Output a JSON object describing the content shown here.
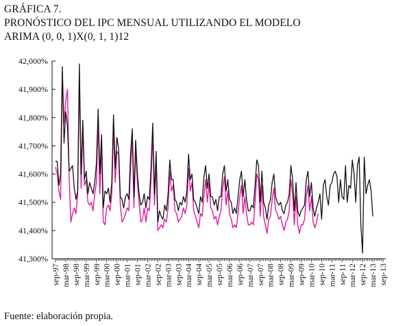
{
  "title": {
    "line1": "GRÁFICA 7.",
    "line2": "PRONÓSTICO DEL IPC MENSUAL UTILIZANDO EL MODELO",
    "line3": "ARIMA (0, 0, 1)X(0, 1, 1)12"
  },
  "source": "Fuente: elaboración propia.",
  "colors": {
    "observed": "#111111",
    "fitted": "#e0199a",
    "axis": "#111111"
  },
  "chart_data": {
    "type": "line",
    "ylim": [
      41.3,
      42.0
    ],
    "y_ticks": [
      "42,000%",
      "41,900%",
      "41,800%",
      "41,700%",
      "41,600%",
      "41,500%",
      "41,400%",
      "41,300%"
    ],
    "y_tick_values": [
      42.0,
      41.9,
      41.8,
      41.7,
      41.6,
      41.5,
      41.4,
      41.3
    ],
    "x_tick_labels": [
      "sep-97",
      "mar-98",
      "sep-98",
      "mar-99",
      "sep-99",
      "mar-00",
      "sep-00",
      "mar-01",
      "sep-01",
      "mar-02",
      "sep-02",
      "mar-03",
      "sep-03",
      "mar-04",
      "sep-04",
      "mar-05",
      "sep-05",
      "mar-06",
      "sep-06",
      "mar-07",
      "sep-07",
      "mar-08",
      "sep-08",
      "mar-09",
      "sep-09",
      "mar-10",
      "sep-10",
      "mar-11",
      "sep-11",
      "mar-12",
      "sep-12",
      "mar-13",
      "sep-13"
    ],
    "x_start": "sep-97",
    "x_end": "sep-13",
    "grid": false,
    "legend": "none",
    "series": [
      {
        "values": [
          41.645,
          41.645,
          41.56,
          41.6,
          41.98,
          41.71,
          41.82,
          41.77,
          41.61,
          41.62,
          41.63,
          41.55,
          41.51,
          41.54,
          41.99,
          41.6,
          41.79,
          41.58,
          41.61,
          41.53,
          41.57,
          41.55,
          41.53,
          41.57,
          41.64,
          41.83,
          41.6,
          41.74,
          41.48,
          41.54,
          41.53,
          41.55,
          41.5,
          41.57,
          41.81,
          41.62,
          41.73,
          41.69,
          41.52,
          41.51,
          41.48,
          41.52,
          41.53,
          41.51,
          41.67,
          41.76,
          41.52,
          41.72,
          41.6,
          41.53,
          41.49,
          41.5,
          41.53,
          41.48,
          41.52,
          41.51,
          41.62,
          41.78,
          41.53,
          41.68,
          41.43,
          41.47,
          41.45,
          41.44,
          41.49,
          41.47,
          41.53,
          41.65,
          41.58,
          41.58,
          41.51,
          41.5,
          41.47,
          41.5,
          41.49,
          41.52,
          41.5,
          41.54,
          41.67,
          41.58,
          41.6,
          41.51,
          41.5,
          41.48,
          41.46,
          41.52,
          41.5,
          41.59,
          41.63,
          41.55,
          41.6,
          41.52,
          41.52,
          41.49,
          41.51,
          41.47,
          41.52,
          41.52,
          41.6,
          41.63,
          41.54,
          41.58,
          41.51,
          41.5,
          41.46,
          41.48,
          41.46,
          41.52,
          41.58,
          41.61,
          41.52,
          41.58,
          41.51,
          41.47,
          41.47,
          41.49,
          41.48,
          41.56,
          41.65,
          41.63,
          41.5,
          41.61,
          41.5,
          41.48,
          41.44,
          41.49,
          41.51,
          41.57,
          41.6,
          41.52,
          41.5,
          41.49,
          41.5,
          41.47,
          41.46,
          41.49,
          41.5,
          41.53,
          41.63,
          41.58,
          41.47,
          41.57,
          41.47,
          41.45,
          41.47,
          41.48,
          41.49,
          41.58,
          41.61,
          41.52,
          41.57,
          41.48,
          41.45,
          41.48,
          41.5,
          41.53,
          41.44,
          41.56,
          41.58,
          41.52,
          41.49,
          41.56,
          41.57,
          41.6,
          41.61,
          41.59,
          41.5,
          41.58,
          41.52,
          41.51,
          41.63,
          41.5,
          41.56,
          41.55,
          41.65,
          41.6,
          41.5,
          41.63,
          41.66,
          41.42,
          41.32,
          41.66,
          41.53,
          41.56,
          41.58,
          41.54,
          41.45
        ]
      },
      {
        "values": [
          41.625,
          41.6,
          41.54,
          41.51,
          41.96,
          41.78,
          41.86,
          41.9,
          41.59,
          41.43,
          41.46,
          41.48,
          41.46,
          41.53,
          41.95,
          41.55,
          41.77,
          41.56,
          41.58,
          41.5,
          41.49,
          41.5,
          41.47,
          41.53,
          41.57,
          41.79,
          41.53,
          41.7,
          41.43,
          41.42,
          41.48,
          41.49,
          41.47,
          41.53,
          41.77,
          41.57,
          41.68,
          41.67,
          41.49,
          41.43,
          41.44,
          41.46,
          41.48,
          41.47,
          41.62,
          41.73,
          41.48,
          41.69,
          41.57,
          41.5,
          41.43,
          41.44,
          41.48,
          41.43,
          41.48,
          41.47,
          41.58,
          41.74,
          41.49,
          41.64,
          41.4,
          41.41,
          41.42,
          41.41,
          41.44,
          41.43,
          41.48,
          41.61,
          41.54,
          41.56,
          41.47,
          41.46,
          41.43,
          41.44,
          41.45,
          41.48,
          41.46,
          41.49,
          41.62,
          41.54,
          41.57,
          41.47,
          41.45,
          41.43,
          41.41,
          41.46,
          41.45,
          41.52,
          41.58,
          41.5,
          41.57,
          41.48,
          41.47,
          41.44,
          41.45,
          41.42,
          41.45,
          41.47,
          41.55,
          41.59,
          41.49,
          41.54,
          41.46,
          41.44,
          41.41,
          41.42,
          41.41,
          41.46,
          41.52,
          41.56,
          41.46,
          41.52,
          41.46,
          41.42,
          41.42,
          41.43,
          41.42,
          41.5,
          41.6,
          41.58,
          41.45,
          41.56,
          41.45,
          41.42,
          41.39,
          41.44,
          41.45,
          41.51,
          41.55,
          41.47,
          41.46,
          41.44,
          41.45,
          41.42,
          41.4,
          41.43,
          41.44,
          41.47,
          41.58,
          41.53,
          41.42,
          41.52,
          41.42,
          41.39,
          41.42,
          41.42,
          41.44,
          41.52,
          41.56,
          41.47,
          41.52,
          41.43,
          41.41,
          41.43,
          41.46
        ]
      }
    ]
  }
}
